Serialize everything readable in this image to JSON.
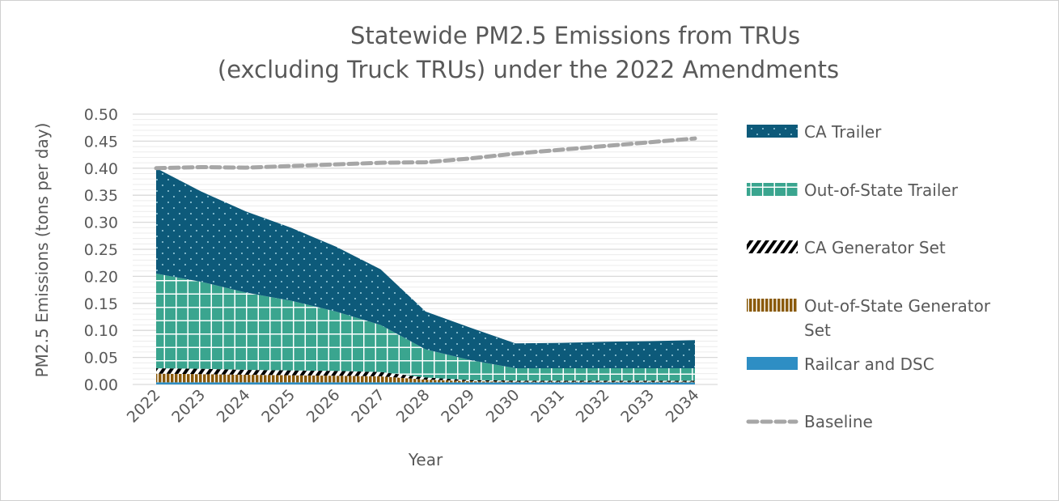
{
  "chart_data": {
    "type": "area",
    "stacked": true,
    "title_lines": [
      "Statewide PM2.5 Emissions from TRUs",
      "(excluding Truck TRUs) under the 2022 Amendments"
    ],
    "xlabel": "Year",
    "ylabel": "PM2.5 Emissions (tons per day)",
    "ylim": [
      0,
      0.5
    ],
    "yticks": [
      "0.00",
      "0.05",
      "0.10",
      "0.15",
      "0.20",
      "0.25",
      "0.30",
      "0.35",
      "0.40",
      "0.45",
      "0.50"
    ],
    "grid": true,
    "legend_position": "right",
    "categories": [
      "2022",
      "2023",
      "2024",
      "2025",
      "2026",
      "2027",
      "2028",
      "2029",
      "2030",
      "2031",
      "2032",
      "2033",
      "2034"
    ],
    "series": [
      {
        "name": "Railcar and DSC",
        "color": "#2e8ec4",
        "pattern": "solid",
        "values": [
          0.004,
          0.004,
          0.004,
          0.004,
          0.004,
          0.004,
          0.004,
          0.004,
          0.004,
          0.004,
          0.004,
          0.004,
          0.004
        ]
      },
      {
        "name": "Out-of-State Generator Set",
        "color": "#8a5a0a",
        "pattern": "vertical-stripes",
        "values": [
          0.016,
          0.015,
          0.014,
          0.013,
          0.012,
          0.011,
          0.005,
          0.002,
          0.001,
          0.001,
          0.001,
          0.001,
          0.001
        ]
      },
      {
        "name": "CA Generator Set",
        "color": "#000000",
        "pattern": "diagonal-stripes",
        "values": [
          0.01,
          0.01,
          0.009,
          0.009,
          0.009,
          0.008,
          0.004,
          0.002,
          0.002,
          0.002,
          0.002,
          0.002,
          0.002
        ]
      },
      {
        "name": "Out-of-State Trailer",
        "color": "#3aa58f",
        "pattern": "grid",
        "values": [
          0.175,
          0.161,
          0.143,
          0.129,
          0.11,
          0.087,
          0.052,
          0.037,
          0.023,
          0.023,
          0.023,
          0.023,
          0.023
        ]
      },
      {
        "name": "CA Trailer",
        "color": "#0d5a7a",
        "pattern": "dots",
        "values": [
          0.195,
          0.167,
          0.15,
          0.135,
          0.12,
          0.103,
          0.07,
          0.06,
          0.046,
          0.047,
          0.049,
          0.05,
          0.052
        ]
      }
    ],
    "line_series": [
      {
        "name": "Baseline",
        "color": "#a6a6a6",
        "style": "dashed",
        "values": [
          0.4,
          0.402,
          0.401,
          0.404,
          0.407,
          0.41,
          0.411,
          0.418,
          0.427,
          0.434,
          0.441,
          0.448,
          0.455
        ]
      }
    ],
    "legend_order": [
      "CA Trailer",
      "Out-of-State Trailer",
      "CA Generator Set",
      "Out-of-State Generator Set",
      "Railcar and DSC",
      "Baseline"
    ]
  }
}
